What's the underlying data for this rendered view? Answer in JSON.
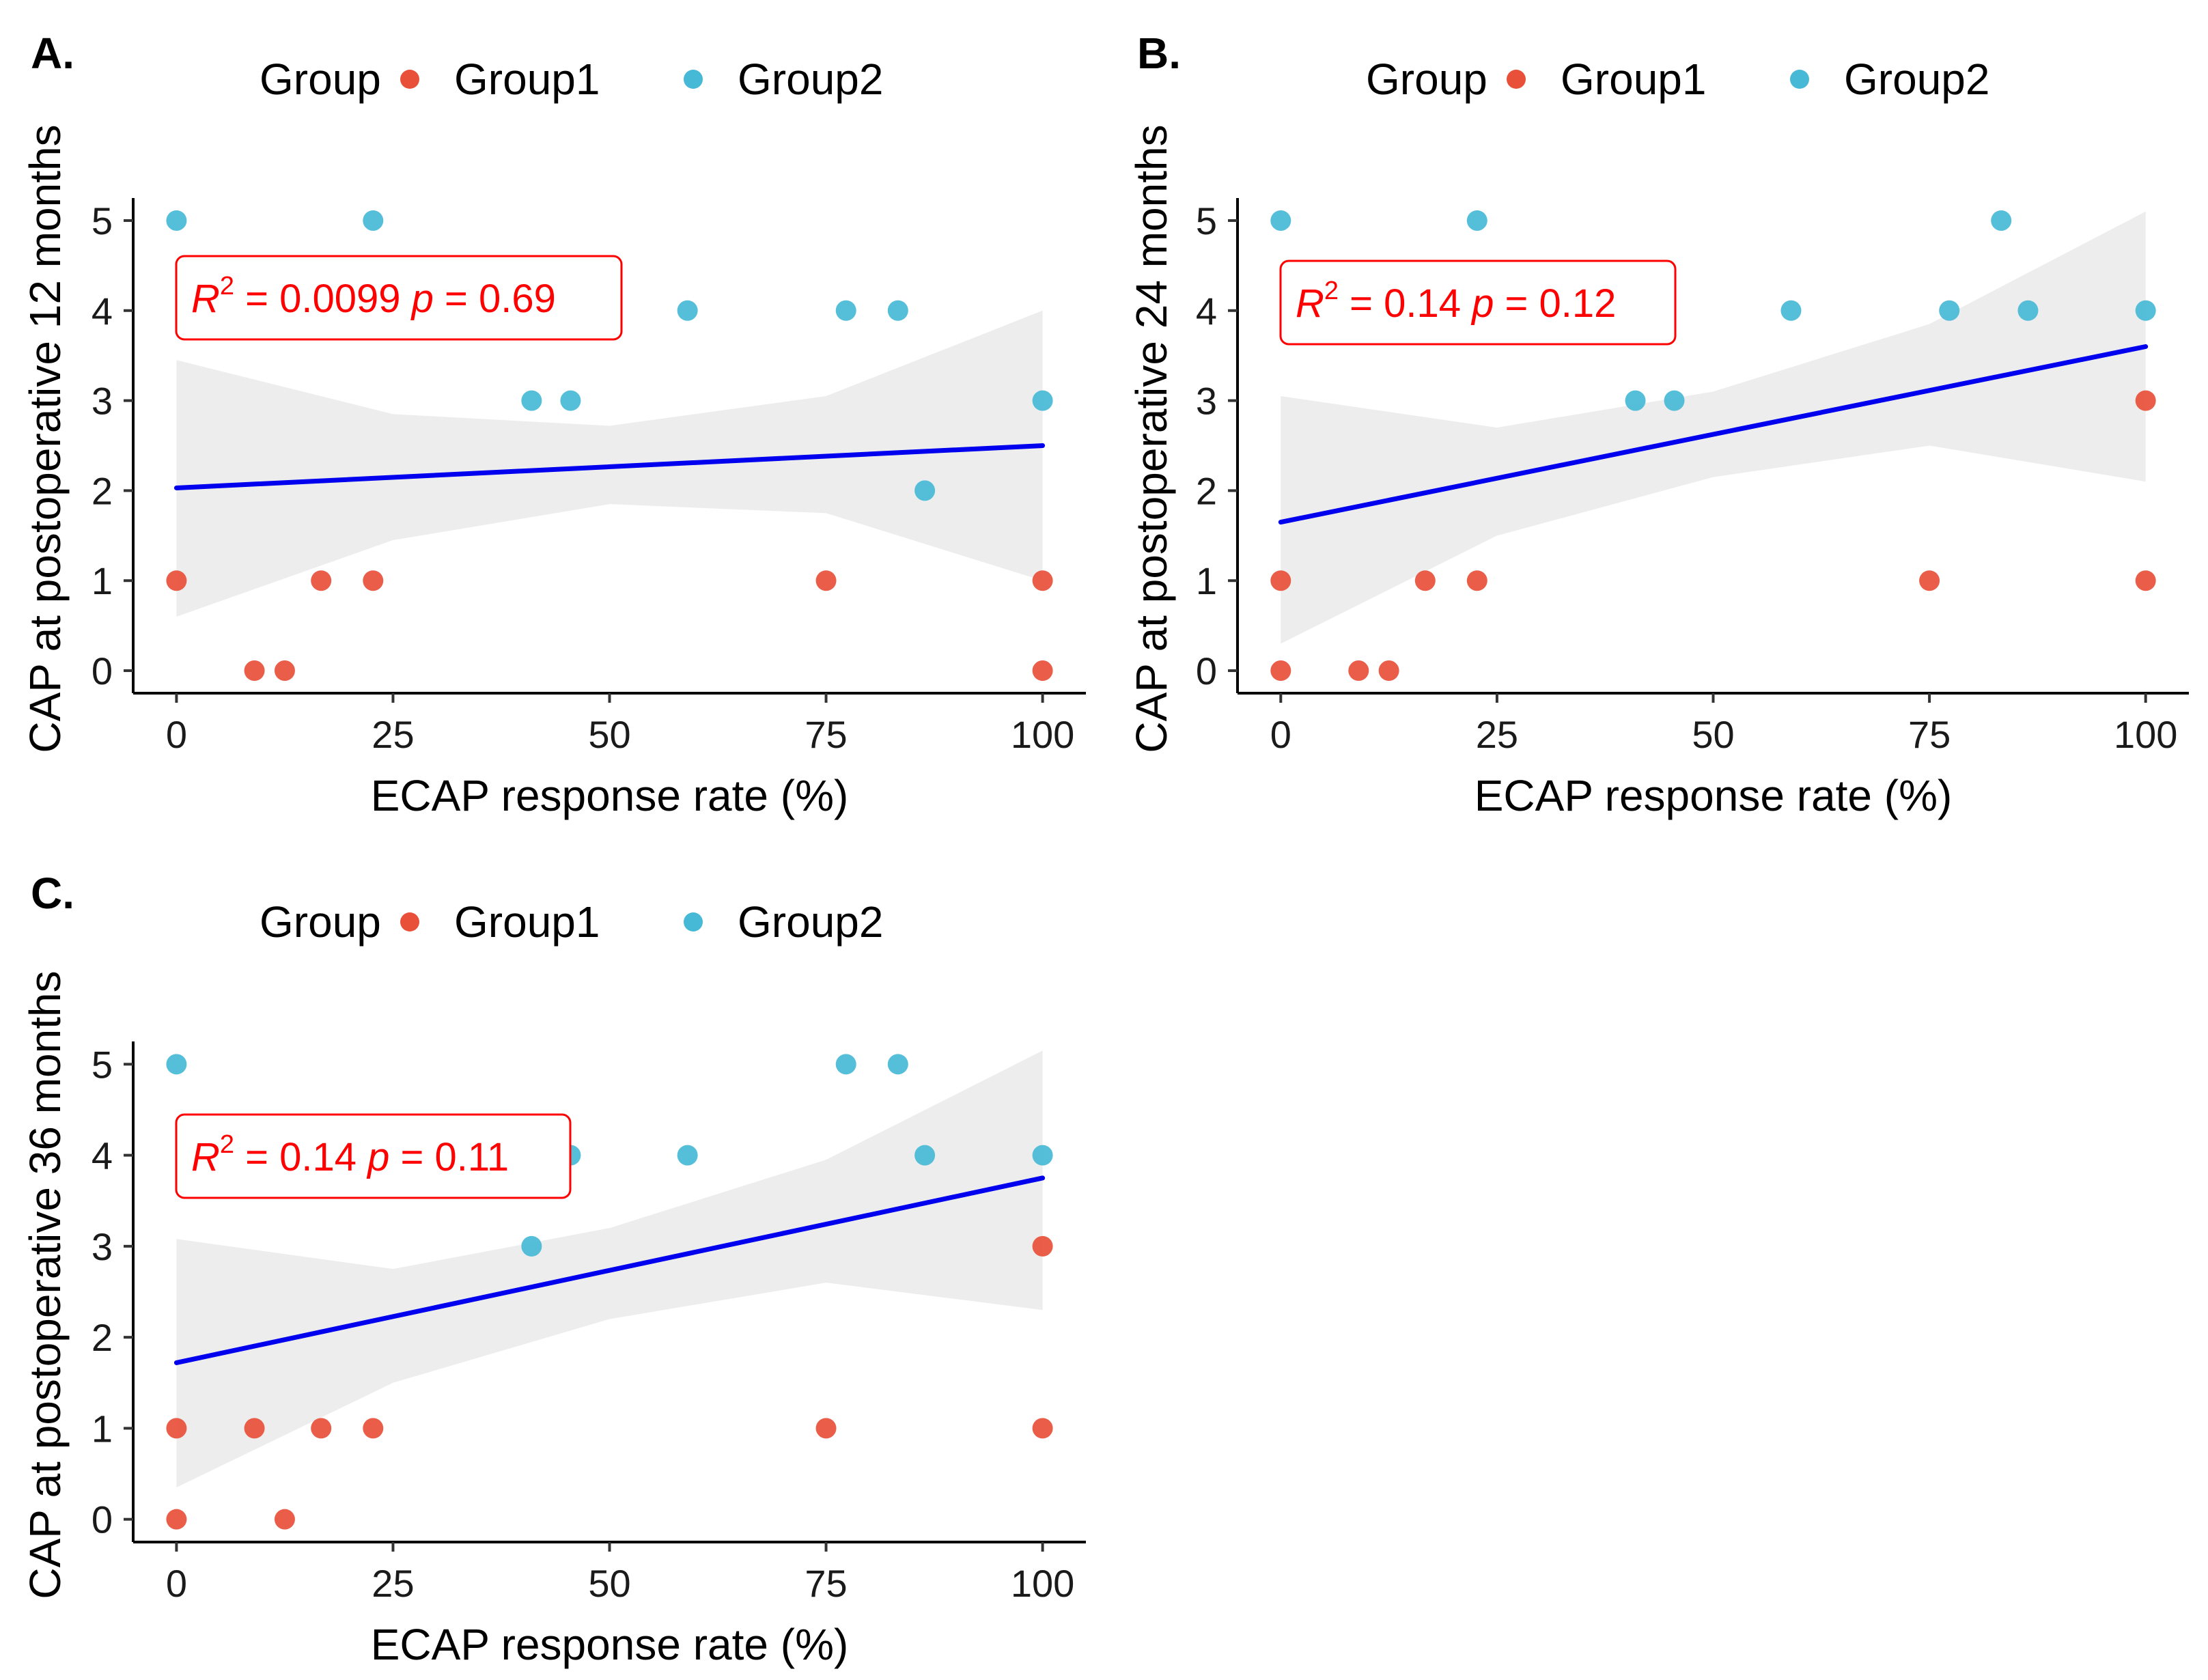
{
  "figure_title": "",
  "colors": {
    "group1": "#e8503a",
    "group2": "#46b9d6",
    "fit_line": "#0000ee",
    "ci_band": "#ebebeb",
    "stat_text": "#ff0000"
  },
  "chart_data": [
    {
      "panel": "A.",
      "type": "scatter",
      "xlabel": "ECAP response rate (%)",
      "ylabel": "CAP at postoperative 12 months",
      "xlim": [
        -5,
        105
      ],
      "ylim": [
        -0.25,
        5.25
      ],
      "xticks": [
        0,
        25,
        50,
        75,
        100
      ],
      "yticks": [
        0,
        1,
        2,
        3,
        4,
        5
      ],
      "legend": {
        "title": "Group",
        "entries": [
          "Group1",
          "Group2"
        ],
        "position": "top"
      },
      "series": [
        {
          "name": "Group1",
          "points": [
            [
              0,
              1
            ],
            [
              9,
              0
            ],
            [
              12.5,
              0
            ],
            [
              16.7,
              1
            ],
            [
              22.7,
              1
            ],
            [
              75,
              1
            ],
            [
              100,
              1
            ],
            [
              100,
              0
            ]
          ]
        },
        {
          "name": "Group2",
          "points": [
            [
              0,
              5
            ],
            [
              22.7,
              5
            ],
            [
              41,
              3
            ],
            [
              45.5,
              3
            ],
            [
              59,
              4
            ],
            [
              77.3,
              4
            ],
            [
              83.3,
              4
            ],
            [
              86.4,
              2
            ],
            [
              100,
              3
            ]
          ]
        }
      ],
      "fit": {
        "x": [
          0,
          100
        ],
        "y": [
          2.03,
          2.5
        ]
      },
      "ci": {
        "x": [
          0,
          25,
          50,
          75,
          100
        ],
        "lower": [
          0.6,
          1.45,
          1.85,
          1.75,
          1.0
        ],
        "upper": [
          3.45,
          2.85,
          2.72,
          3.05,
          4.0
        ]
      },
      "stats": {
        "r2_label": "R",
        "r2_sup": "2",
        "r2_value": " = 0.0099 ",
        "p_label": "p",
        "p_value": " = 0.69"
      }
    },
    {
      "panel": "B.",
      "type": "scatter",
      "xlabel": "ECAP response rate (%)",
      "ylabel": "CAP at postoperative 24 months",
      "xlim": [
        -5,
        105
      ],
      "ylim": [
        -0.25,
        5.25
      ],
      "xticks": [
        0,
        25,
        50,
        75,
        100
      ],
      "yticks": [
        0,
        1,
        2,
        3,
        4,
        5
      ],
      "legend": {
        "title": "Group",
        "entries": [
          "Group1",
          "Group2"
        ],
        "position": "top"
      },
      "series": [
        {
          "name": "Group1",
          "points": [
            [
              0,
              1
            ],
            [
              0,
              0
            ],
            [
              9,
              0
            ],
            [
              12.5,
              0
            ],
            [
              16.7,
              1
            ],
            [
              22.7,
              1
            ],
            [
              75,
              1
            ],
            [
              100,
              3
            ],
            [
              100,
              1
            ]
          ]
        },
        {
          "name": "Group2",
          "points": [
            [
              0,
              5
            ],
            [
              22.7,
              5
            ],
            [
              41,
              3
            ],
            [
              45.5,
              3
            ],
            [
              59,
              4
            ],
            [
              77.3,
              4
            ],
            [
              83.3,
              5
            ],
            [
              86.4,
              4
            ],
            [
              100,
              4
            ]
          ]
        }
      ],
      "fit": {
        "x": [
          0,
          100
        ],
        "y": [
          1.65,
          3.6
        ]
      },
      "ci": {
        "x": [
          0,
          25,
          50,
          75,
          100
        ],
        "lower": [
          0.3,
          1.5,
          2.15,
          2.5,
          2.1
        ],
        "upper": [
          3.05,
          2.7,
          3.1,
          3.85,
          5.1
        ]
      },
      "stats": {
        "r2_label": "R",
        "r2_sup": "2",
        "r2_value": " = 0.14 ",
        "p_label": "p",
        "p_value": " = 0.12"
      }
    },
    {
      "panel": "C.",
      "type": "scatter",
      "xlabel": "ECAP response rate (%)",
      "ylabel": "CAP at postoperative 36 months",
      "xlim": [
        -5,
        105
      ],
      "ylim": [
        -0.25,
        5.25
      ],
      "xticks": [
        0,
        25,
        50,
        75,
        100
      ],
      "yticks": [
        0,
        1,
        2,
        3,
        4,
        5
      ],
      "legend": {
        "title": "Group",
        "entries": [
          "Group1",
          "Group2"
        ],
        "position": "top"
      },
      "series": [
        {
          "name": "Group1",
          "points": [
            [
              0,
              1
            ],
            [
              0,
              0
            ],
            [
              9,
              1
            ],
            [
              12.5,
              0
            ],
            [
              16.7,
              1
            ],
            [
              22.7,
              1
            ],
            [
              75,
              1
            ],
            [
              100,
              3
            ],
            [
              100,
              1
            ]
          ]
        },
        {
          "name": "Group2",
          "points": [
            [
              0,
              5
            ],
            [
              41,
              3
            ],
            [
              45.5,
              4
            ],
            [
              59,
              4
            ],
            [
              77.3,
              5
            ],
            [
              83.3,
              5
            ],
            [
              86.4,
              4
            ],
            [
              100,
              4
            ]
          ]
        }
      ],
      "fit": {
        "x": [
          0,
          100
        ],
        "y": [
          1.72,
          3.75
        ]
      },
      "ci": {
        "x": [
          0,
          25,
          50,
          75,
          100
        ],
        "lower": [
          0.35,
          1.5,
          2.2,
          2.6,
          2.3
        ],
        "upper": [
          3.08,
          2.75,
          3.2,
          3.95,
          5.15
        ]
      },
      "stats": {
        "r2_label": "R",
        "r2_sup": "2",
        "r2_value": " = 0.14 ",
        "p_label": "p",
        "p_value": " = 0.11"
      }
    }
  ]
}
